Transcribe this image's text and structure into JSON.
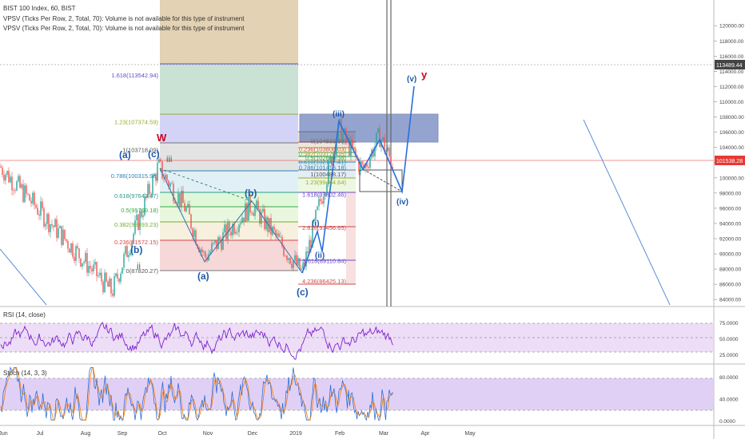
{
  "header": {
    "symbol": "BIST 100 Index, 60, BIST",
    "vpsv1": "VPSV (Ticks Per Row, 2, Total, 70): Volume is not available for this type of instrument",
    "vpsv2": "VPSV (Ticks Per Row, 2, Total, 70): Volume is not available for this type of instrument"
  },
  "colors": {
    "candle_up": "#26a69a",
    "candle_down": "#ef5350",
    "wave_blue": "#1e5aa8",
    "wave_red": "#d0021b",
    "rsi_line": "#7e22ce",
    "stoch_k": "#2a6fdb",
    "stoch_d": "#f57c00",
    "price_line": "#e53935"
  },
  "chart_data": [
    {
      "type": "candlestick",
      "panel": "price",
      "title": "BIST 100 Index, 60, BIST",
      "x_ticks": [
        "Jun",
        "Jul",
        "Aug",
        "Sep",
        "Oct",
        "Nov",
        "Dec",
        "2019",
        "Feb",
        "Mar",
        "Apr",
        "May"
      ],
      "y_ticks": [
        84000,
        86000,
        88000,
        90000,
        92000,
        94000,
        96000,
        98000,
        100000,
        102000,
        104000,
        106000,
        108000,
        110000,
        112000,
        114000,
        116000,
        118000,
        120000
      ],
      "ylim": [
        83600,
        121600
      ],
      "current_price": 101538.28,
      "crosshair_price": 113489.44,
      "key_points": [
        {
          "date": "Jun",
          "value": 101500
        },
        {
          "date": "Aug (mid)",
          "value": 85000
        },
        {
          "date": "Sep (late)",
          "value": 101500
        },
        {
          "date": "Oct",
          "value": 96000
        },
        {
          "date": "Nov",
          "value": 89500
        },
        {
          "date": "Nov (late)",
          "value": 96500
        },
        {
          "date": "Dec (late)",
          "value": 87500
        },
        {
          "date": "Jan (late)",
          "value": 106500
        },
        {
          "date": "Feb",
          "value": 101000
        },
        {
          "date": "Feb (late)",
          "value": 105500
        },
        {
          "date": "Mar",
          "value": 101538.28
        }
      ],
      "fib_levels_1": [
        {
          "label": "1.618(113542.94)",
          "value": 113542.94
        },
        {
          "label": "1.23(107374.59)",
          "value": 107374.59
        },
        {
          "label": "1(103718.09)",
          "value": 103718.09
        },
        {
          "label": "0.786(100315.96)",
          "value": 100315.96
        },
        {
          "label": "0.618(97643.47)",
          "value": 97643.47
        },
        {
          "label": "0.5(95769.18)",
          "value": 95769.18
        },
        {
          "label": "0.382(93893.23)",
          "value": 93893.23
        },
        {
          "label": "0.236(91572.15)",
          "value": 91572.15
        },
        {
          "label": "0(87820.27)",
          "value": 87820.27
        }
      ],
      "fib_levels_2": [
        {
          "label": "0(104833.93)",
          "value": 104833.93
        },
        {
          "label": "0.236(103808.03)",
          "value": 103808.03
        },
        {
          "label": "0.382(103173.35)",
          "value": 103173.35
        },
        {
          "label": "0.5(102660.38)",
          "value": 102660.38
        },
        {
          "label": "0.618(102147.41)",
          "value": 102147.41
        },
        {
          "label": "0.786(101416.18)",
          "value": 101416.18
        },
        {
          "label": "1(100488.17)",
          "value": 100488.17
        },
        {
          "label": "1.23(99464.64)",
          "value": 99464.64
        },
        {
          "label": "1.618(97802.46)",
          "value": 97802.46
        },
        {
          "label": "2.618(93456.65)",
          "value": 93456.65
        },
        {
          "label": "3.618(89110.84)",
          "value": 89110.84
        },
        {
          "label": "4.236(86425.13)",
          "value": 86425.13
        }
      ],
      "wave_labels": [
        {
          "text": "W",
          "color": "red"
        },
        {
          "text": "y",
          "color": "red"
        },
        {
          "text": "(a)"
        },
        {
          "text": "(b)"
        },
        {
          "text": "(c)"
        },
        {
          "text": "iii"
        },
        {
          "text": "ii"
        },
        {
          "text": "(a)"
        },
        {
          "text": "(b)"
        },
        {
          "text": "(c)"
        },
        {
          "text": "(iii)"
        },
        {
          "text": "(i)"
        },
        {
          "text": "(ii)"
        },
        {
          "text": "(iv)"
        },
        {
          "text": "(v)"
        }
      ]
    },
    {
      "type": "line",
      "panel": "rsi",
      "title": "RSI (14, close)",
      "y_ticks": [
        25.0,
        50.0,
        75.0
      ],
      "band": [
        30,
        70
      ],
      "ylim": [
        13,
        96
      ]
    },
    {
      "type": "line",
      "panel": "stoch",
      "title": "Stoch (14, 3, 3)",
      "y_ticks": [
        0.0,
        40.0,
        80.0
      ],
      "band": [
        20,
        80
      ],
      "ylim": [
        -5,
        100
      ]
    }
  ],
  "price_axis": {
    "ticks": [
      "120000.00",
      "118000.00",
      "116000.00",
      "114000.00",
      "112000.00",
      "110000.00",
      "108000.00",
      "106000.00",
      "104000.00",
      "102000.00",
      "100000.00",
      "98000.00",
      "96000.00",
      "94000.00",
      "92000.00",
      "90000.00",
      "88000.00",
      "86000.00",
      "84000.00"
    ],
    "current_label": "101538.28",
    "crosshair_label": "113489.44"
  },
  "rsi_axis": {
    "ticks": [
      "75.0000",
      "50.0000",
      "25.0000"
    ]
  },
  "stoch_axis": {
    "ticks": [
      "80.0000",
      "40.0000",
      "0.0000"
    ]
  },
  "time_axis": {
    "ticks": [
      "Jun",
      "Jul",
      "Aug",
      "Sep",
      "Oct",
      "Nov",
      "Dec",
      "2019",
      "Feb",
      "Mar",
      "Apr",
      "May"
    ]
  }
}
